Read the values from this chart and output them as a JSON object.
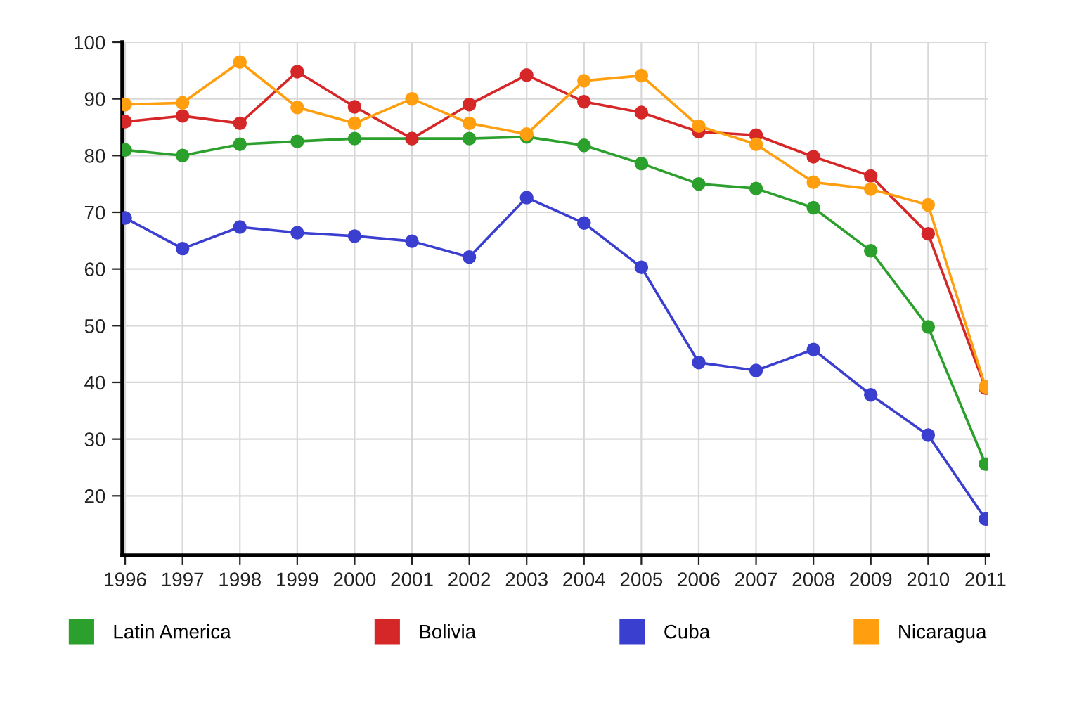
{
  "chart_data": {
    "type": "line",
    "categories": [
      "1996",
      "1997",
      "1998",
      "1999",
      "2000",
      "2001",
      "2002",
      "2003",
      "2004",
      "2005",
      "2006",
      "2007",
      "2008",
      "2009",
      "2010",
      "2011"
    ],
    "series": [
      {
        "name": "Latin America",
        "color": "#2ca02c",
        "values": [
          81,
          80,
          82,
          82.5,
          83,
          83,
          83,
          83.3,
          81.8,
          78.6,
          75,
          74.2,
          70.8,
          63.2,
          49.8,
          25.6
        ]
      },
      {
        "name": "Bolivia",
        "color": "#d62728",
        "values": [
          86,
          87,
          85.7,
          94.8,
          88.6,
          83,
          89,
          94.2,
          89.5,
          87.6,
          84.2,
          83.6,
          79.8,
          76.4,
          66.2,
          39
        ]
      },
      {
        "name": "Cuba",
        "color": "#3b3fcf",
        "values": [
          69,
          63.6,
          67.4,
          66.4,
          65.8,
          64.9,
          62.1,
          72.6,
          68.1,
          60.3,
          43.5,
          42.1,
          45.8,
          37.8,
          30.7,
          15.9
        ]
      },
      {
        "name": "Nicaragua",
        "color": "#ff9f10",
        "values": [
          89,
          89.3,
          96.5,
          88.5,
          85.7,
          90,
          85.7,
          83.8,
          93.2,
          94.1,
          85.2,
          82,
          75.3,
          74.1,
          71.3,
          39.2
        ]
      }
    ],
    "ylim": [
      9.5,
      100
    ],
    "yticks": [
      20,
      30,
      40,
      50,
      60,
      70,
      80,
      90,
      100
    ],
    "grid": true,
    "legend": "bottom",
    "marker": "circle",
    "line_style": "solid"
  }
}
